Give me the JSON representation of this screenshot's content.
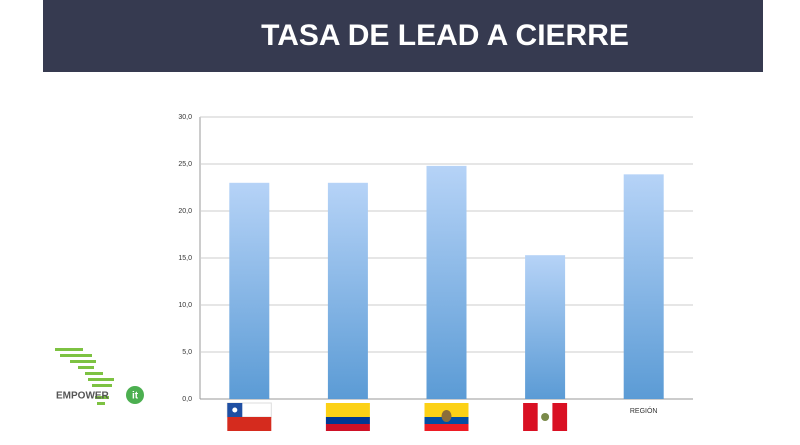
{
  "chart_data": {
    "type": "bar",
    "title": "TASA DE LEAD A CIERRE",
    "categories": [
      null,
      null,
      null,
      null,
      "REGIÓN"
    ],
    "values": [
      23.0,
      23.0,
      24.8,
      15.3,
      23.9
    ],
    "color": "#5b9bd5",
    "ylim": [
      0,
      30
    ],
    "yticks": [
      {
        "value": 0,
        "label": "0,0"
      },
      {
        "value": 5,
        "label": "5,0"
      },
      {
        "value": 10,
        "label": "10,0"
      },
      {
        "value": 15,
        "label": "15,0"
      },
      {
        "value": 20,
        "label": "20,0"
      },
      {
        "value": 25,
        "label": "25,0"
      },
      {
        "value": 30,
        "label": "30,0"
      }
    ],
    "grid": true
  },
  "logo": {
    "text": "EMPOWER",
    "badge": "it"
  }
}
